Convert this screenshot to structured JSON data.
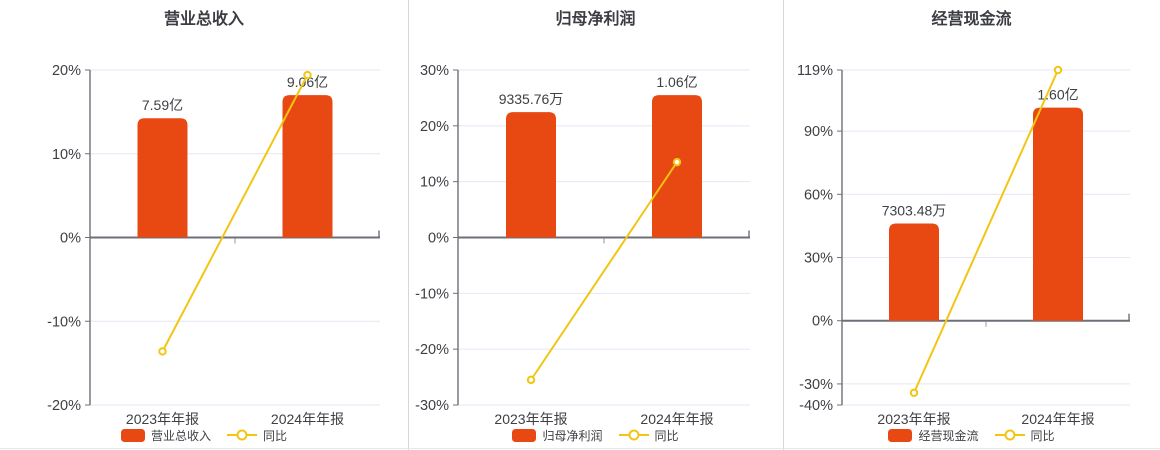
{
  "style": {
    "bar_color": "#e84812",
    "line_color": "#f3c513",
    "marker_fill": "#ffffff",
    "grid_color": "#e2e8f4",
    "axis_color": "#6e7079",
    "minor_tick_color": "#9097a0",
    "text_color": "#3f4045",
    "title_color": "#3b3d42",
    "divider_color": "#d7d7d7",
    "bottom_border_color": "#e4e7ee",
    "background": "#ffffff"
  },
  "chart_data": [
    {
      "type": "bar",
      "title": "营业总收入",
      "categories": [
        "2023年年报",
        "2024年年报"
      ],
      "series": [
        {
          "name": "营业总收入",
          "type": "bar",
          "value_labels": [
            "7.59亿",
            "9.06亿"
          ],
          "values_yi": [
            7.59,
            9.06
          ]
        },
        {
          "name": "同比",
          "type": "line",
          "values_pct": [
            -13.6,
            19.4
          ]
        }
      ],
      "y_axis": {
        "unit": "%",
        "min": -20,
        "max": 20,
        "ticks": [
          20,
          10,
          0,
          -10,
          -20
        ]
      },
      "legend": [
        "营业总收入",
        "同比"
      ],
      "grid": "on",
      "legend_position": "bottom"
    },
    {
      "type": "bar",
      "title": "归母净利润",
      "categories": [
        "2023年年报",
        "2024年年报"
      ],
      "series": [
        {
          "name": "归母净利润",
          "type": "bar",
          "value_labels": [
            "9335.76万",
            "1.06亿"
          ],
          "values_yi": [
            0.933576,
            1.06
          ]
        },
        {
          "name": "同比",
          "type": "line",
          "values_pct": [
            -25.5,
            13.5
          ]
        }
      ],
      "y_axis": {
        "unit": "%",
        "min": -30,
        "max": 30,
        "ticks": [
          30,
          20,
          10,
          0,
          -10,
          -20,
          -30
        ]
      },
      "legend": [
        "归母净利润",
        "同比"
      ],
      "grid": "on",
      "legend_position": "bottom"
    },
    {
      "type": "bar",
      "title": "经营现金流",
      "categories": [
        "2023年年报",
        "2024年年报"
      ],
      "series": [
        {
          "name": "经营现金流",
          "type": "bar",
          "value_labels": [
            "7303.48万",
            "1.60亿"
          ],
          "values_yi": [
            0.730348,
            1.6
          ]
        },
        {
          "name": "同比",
          "type": "line",
          "values_pct": [
            -34.2,
            119
          ]
        }
      ],
      "y_axis": {
        "unit": "%",
        "min": -40,
        "max": 119,
        "ticks": [
          119,
          90,
          60,
          30,
          0,
          -30,
          -40
        ]
      },
      "legend": [
        "经营现金流",
        "同比"
      ],
      "grid": "on",
      "legend_position": "bottom"
    }
  ]
}
